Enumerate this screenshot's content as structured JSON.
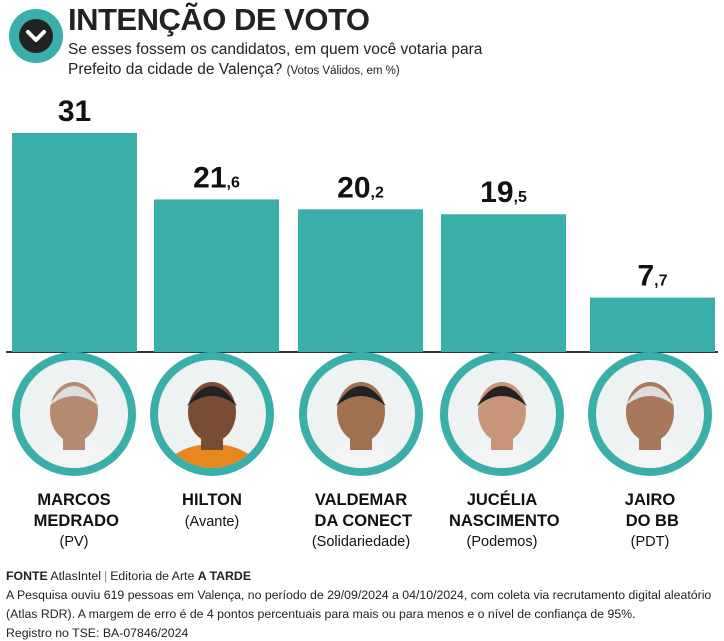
{
  "chart_data": {
    "type": "bar",
    "title": "INTENÇÃO DE VOTO",
    "subtitle": "Se esses fossem os candidatos, em quem você votaria para Prefeito da cidade de Valença?",
    "note": "(Votos Válidos, em %)",
    "categories": [
      "MARCOS MEDRADO",
      "HILTON",
      "VALDEMAR DA CONECT",
      "JUCÉLIA NASCIMENTO",
      "JAIRO DO BB"
    ],
    "parties": [
      "(PV)",
      "(Avante)",
      "(Solidariedade)",
      "(Podemos)",
      "(PDT)"
    ],
    "values": [
      31,
      21.6,
      20.2,
      19.5,
      7.7
    ],
    "value_labels": [
      "31",
      "21,6",
      "20,2",
      "19,5",
      "7,7"
    ],
    "color": "#3aafa9"
  },
  "footer": {
    "source_label": "FONTE",
    "source": "AtlasIntel",
    "credit_label": "Editoria de Arte",
    "credit": "A TARDE",
    "methodology": "A Pesquisa ouviu 619 pessoas em Valença, no período de 29/09/2024 a 04/10/2024, com coleta via recrutamento digital aleatório (Atlas RDR). A margem de erro é de 4 pontos percentuais para mais ou para menos e o nível de confiança de 95%.",
    "registry": "Registro no TSE: BA-07846/2024"
  }
}
